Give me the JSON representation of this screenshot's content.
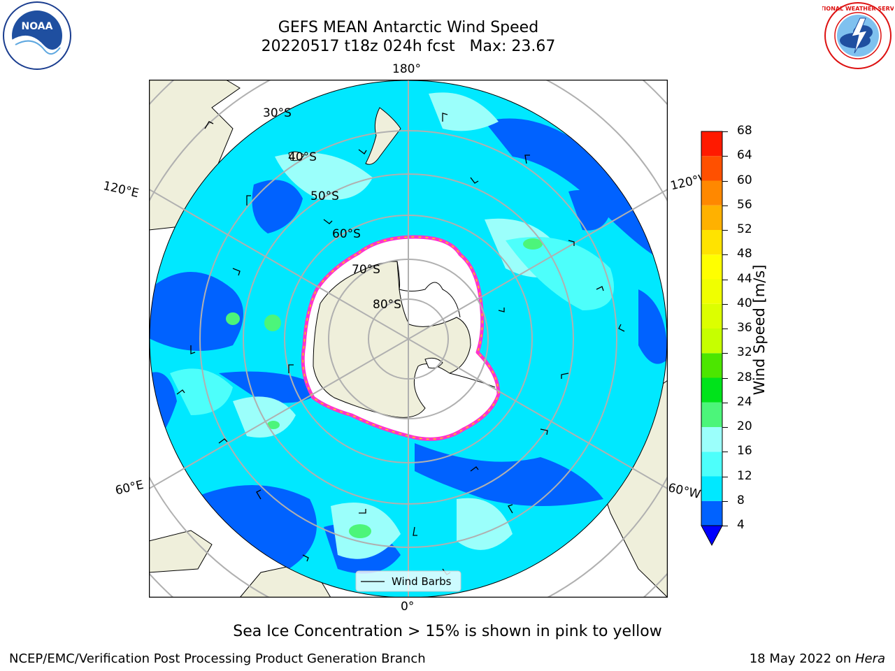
{
  "header": {
    "title_line1": "GEFS MEAN Antarctic Wind Speed",
    "title_line2": "20220517 t18z 024h fcst   Max: 23.67"
  },
  "logos": {
    "left_badge_text": "NOAA",
    "right_ring_text": "NATIONAL WEATHER SERVICE"
  },
  "map": {
    "longitude_labels": {
      "top": "180°",
      "left": "120°E",
      "right": "120°W",
      "bottom_left": "60°E",
      "bottom_right": "60°W",
      "bottom": "0°"
    },
    "latitude_labels": [
      "30°S",
      "40°S",
      "50°S",
      "60°S",
      "70°S",
      "80°S"
    ],
    "legend_label": "Wind Barbs",
    "colors": {
      "ocean_low": "#0000ff",
      "ocean_mid": "#00ffff",
      "ocean_high": "#98fffa",
      "land": "#efefdb",
      "ice": "#ffffff",
      "ice_edge": "#ff33cc"
    }
  },
  "colorbar": {
    "label": "Wind Speed [m/s]",
    "ticks": [
      "4",
      "8",
      "12",
      "16",
      "20",
      "24",
      "28",
      "32",
      "36",
      "40",
      "44",
      "48",
      "52",
      "56",
      "60",
      "64",
      "68"
    ],
    "colors": [
      "#0062ff",
      "#00e8ff",
      "#4dfffb",
      "#9bfffb",
      "#4cf57a",
      "#00e31b",
      "#4ce600",
      "#c6ff00",
      "#dcff00",
      "#f0ff00",
      "#ffff00",
      "#ffe300",
      "#ffb100",
      "#ff8800",
      "#ff5000",
      "#ff1a00"
    ],
    "under_color": "#0000ff"
  },
  "note": "Sea Ice Concentration > 15% is shown in pink to yellow",
  "footer": {
    "left": "NCEP/EMC/Verification Post Processing Product Generation Branch",
    "right_prefix": "18 May 2022 on ",
    "right_host": "Hera"
  }
}
